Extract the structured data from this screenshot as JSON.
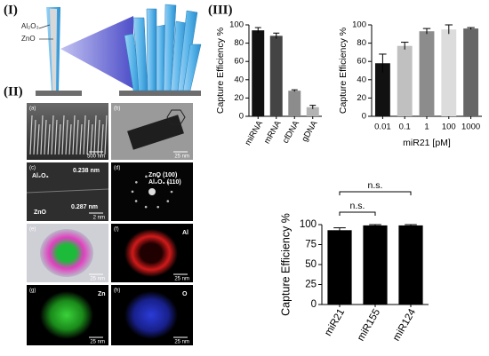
{
  "panel_I": {
    "label": "(I)",
    "coating": "Al₂O₃",
    "core": "ZnO"
  },
  "panel_II": {
    "label": "(II)",
    "images": [
      {
        "tag": "(a)",
        "scale": "500 nm"
      },
      {
        "tag": "(b)",
        "scale": "25 nm"
      },
      {
        "tag": "(c)",
        "scale": "2 nm",
        "notes": [
          "0.238 nm",
          "Al₂O₃",
          "0.287 nm",
          "ZnO"
        ]
      },
      {
        "tag": "(d)",
        "notes": [
          "ZnO (100)",
          "Al₂O₃ (110)"
        ]
      },
      {
        "tag": "(e)",
        "scale": "25 nm"
      },
      {
        "tag": "(f)",
        "label": "Al",
        "scale": "25 nm"
      },
      {
        "tag": "(g)",
        "label": "Zn",
        "scale": "25 nm"
      },
      {
        "tag": "(h)",
        "label": "O",
        "scale": "25 nm"
      }
    ]
  },
  "panel_III": {
    "label": "(III)"
  },
  "chart_data": [
    {
      "type": "bar",
      "ylabel": "Capture Efficiency %",
      "categories": [
        "miRNA",
        "mRNA",
        "cfDNA",
        "gDNA"
      ],
      "values": [
        94,
        88,
        28,
        10
      ],
      "errors": [
        3,
        3,
        1,
        2
      ],
      "colors": [
        "#111111",
        "#444444",
        "#8c8c8c",
        "#b3b3b3"
      ],
      "ylim": [
        0,
        100
      ],
      "yticks": [
        0,
        20,
        40,
        60,
        80,
        100
      ]
    },
    {
      "type": "bar",
      "ylabel": "Capture Efficiency %",
      "xlabel": "miR21 [pM]",
      "categories": [
        "0.01",
        "0.1",
        "1",
        "100",
        "1000"
      ],
      "values": [
        58,
        77,
        93,
        95,
        96
      ],
      "errors": [
        10,
        4,
        3,
        5,
        1
      ],
      "colors": [
        "#111111",
        "#c0c0c0",
        "#8c8c8c",
        "#dcdcdc",
        "#666666"
      ],
      "ylim": [
        0,
        100
      ],
      "yticks": [
        0,
        20,
        40,
        60,
        80,
        100
      ]
    },
    {
      "type": "bar",
      "ylabel": "Capture Efficiency %",
      "categories": [
        "miR21",
        "miR155",
        "miR124"
      ],
      "values": [
        93,
        99,
        99
      ],
      "errors": [
        3,
        1,
        1
      ],
      "colors": [
        "#000000",
        "#000000",
        "#000000"
      ],
      "ylim": [
        0,
        100
      ],
      "yticks": [
        0,
        25,
        50,
        75,
        100
      ],
      "annotations": [
        "n.s.",
        "n.s."
      ]
    }
  ]
}
